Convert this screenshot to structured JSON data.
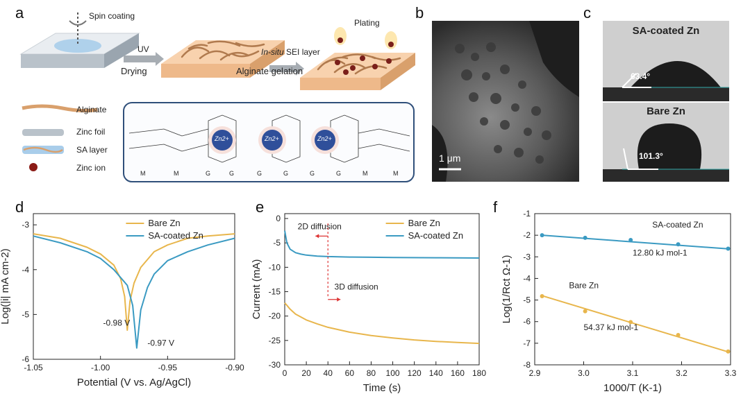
{
  "panel_letters": {
    "a": "a",
    "b": "b",
    "c": "c",
    "d": "d",
    "e": "e",
    "f": "f"
  },
  "schematic": {
    "spin_coating": "Spin coating",
    "uv": "UV",
    "drying": "Drying",
    "in_situ": "In-situ",
    "sei_layer": "SEI layer",
    "alginate_gelation": "Alginate gelation",
    "plating": "Plating",
    "legend": [
      {
        "label": "Alginate",
        "icon": "alginate-strand-icon"
      },
      {
        "label": "Zinc foil",
        "icon": "zinc-foil-icon"
      },
      {
        "label": "SA layer",
        "icon": "sa-layer-icon"
      },
      {
        "label": "Zinc ion",
        "icon": "zinc-ion-icon"
      }
    ],
    "zn_ions": [
      "Zn2+",
      "Zn2+",
      "Zn2+"
    ],
    "residues": [
      "M",
      "M",
      "G",
      "G",
      "G",
      "G",
      "G",
      "G",
      "M",
      "M"
    ]
  },
  "sem": {
    "scale_bar": "1 μm"
  },
  "contact": {
    "sa_title": "SA-coated Zn",
    "sa_angle": "63.4°",
    "bare_title": "Bare Zn",
    "bare_angle": "101.3°"
  },
  "chart_data": [
    {
      "panel": "d",
      "type": "line",
      "xlabel": "Potential (V vs. Ag/AgCl)",
      "ylabel": "Log(|i| mA cm-2)",
      "xlim": [
        -1.05,
        -0.9
      ],
      "ylim": [
        -6,
        -2.75
      ],
      "xticks": [
        -1.05,
        -1.0,
        -0.95,
        -0.9
      ],
      "xtick_labels": [
        "-1.05",
        "-1.00",
        "-0.95",
        "-0.90"
      ],
      "yticks": [
        -6,
        -5,
        -4,
        -3
      ],
      "ytick_labels": [
        "-6",
        "-5",
        "-4",
        "-3"
      ],
      "legend_position": "top-right",
      "series": [
        {
          "name": "Bare Zn",
          "color": "#E8B64C",
          "x": [
            -1.05,
            -1.03,
            -1.01,
            -1.0,
            -0.99,
            -0.985,
            -0.982,
            -0.98,
            -0.978,
            -0.975,
            -0.97,
            -0.96,
            -0.95,
            -0.935,
            -0.92,
            -0.9
          ],
          "y": [
            -3.2,
            -3.3,
            -3.5,
            -3.65,
            -3.9,
            -4.2,
            -4.6,
            -5.35,
            -4.7,
            -4.3,
            -3.95,
            -3.6,
            -3.45,
            -3.3,
            -3.25,
            -3.2
          ]
        },
        {
          "name": "SA-coated Zn",
          "color": "#3A9AC2",
          "x": [
            -1.05,
            -1.03,
            -1.01,
            -1.0,
            -0.99,
            -0.98,
            -0.976,
            -0.973,
            -0.97,
            -0.965,
            -0.96,
            -0.95,
            -0.935,
            -0.92,
            -0.9
          ],
          "y": [
            -3.25,
            -3.4,
            -3.6,
            -3.75,
            -4.0,
            -4.35,
            -4.8,
            -5.75,
            -4.9,
            -4.4,
            -4.1,
            -3.8,
            -3.6,
            -3.45,
            -3.3
          ]
        }
      ],
      "annotations": [
        {
          "text": "-0.98 V",
          "x": -0.998,
          "y": -5.25
        },
        {
          "text": "-0.97 V",
          "x": -0.965,
          "y": -5.7
        }
      ]
    },
    {
      "panel": "e",
      "type": "line",
      "xlabel": "Time (s)",
      "ylabel": "Current (mA)",
      "xlim": [
        0,
        180
      ],
      "ylim": [
        -30,
        1
      ],
      "xticks": [
        0,
        20,
        40,
        60,
        80,
        100,
        120,
        140,
        160,
        180
      ],
      "yticks": [
        0,
        -5,
        -10,
        -15,
        -20,
        -25,
        -30
      ],
      "legend_position": "top-right",
      "series": [
        {
          "name": "Bare Zn",
          "color": "#E8B64C",
          "x": [
            0,
            2,
            5,
            10,
            20,
            30,
            40,
            60,
            80,
            100,
            120,
            140,
            160,
            180
          ],
          "y": [
            -17.3,
            -17.8,
            -18.6,
            -19.6,
            -20.8,
            -21.6,
            -22.3,
            -23.3,
            -24.0,
            -24.5,
            -24.9,
            -25.2,
            -25.4,
            -25.6
          ]
        },
        {
          "name": "SA-coated Zn",
          "color": "#3A9AC2",
          "x": [
            0,
            2,
            5,
            10,
            15,
            20,
            30,
            40,
            60,
            80,
            100,
            140,
            180
          ],
          "y": [
            -2.5,
            -5.0,
            -6.3,
            -7.0,
            -7.3,
            -7.5,
            -7.7,
            -7.8,
            -7.9,
            -7.95,
            -8.0,
            -8.05,
            -8.1
          ]
        }
      ],
      "annotations": [
        {
          "text": "2D diffusion",
          "x": 12,
          "y": -2.2
        },
        {
          "text": "3D diffusion",
          "x": 46,
          "y": -14.6
        }
      ],
      "marker_x": 40
    },
    {
      "panel": "f",
      "type": "scatter",
      "xlabel": "1000/T (K-1)",
      "ylabel": "Log(1/Rct Ω-1)",
      "xlim": [
        2.9,
        3.3
      ],
      "ylim": [
        -8,
        -1
      ],
      "xticks": [
        2.9,
        3.0,
        3.1,
        3.2,
        3.3
      ],
      "xtick_labels": [
        "2.9",
        "3.0",
        "3.1",
        "3.2",
        "3.3"
      ],
      "yticks": [
        -1,
        -2,
        -3,
        -4,
        -5,
        -6,
        -7,
        -8
      ],
      "series": [
        {
          "name": "SA-coated Zn",
          "color": "#3A9AC2",
          "x": [
            2.915,
            3.003,
            3.096,
            3.193,
            3.295
          ],
          "y": [
            -2.0,
            -2.12,
            -2.22,
            -2.42,
            -2.62
          ],
          "fit": [
            [
              2.915,
              -2.0
            ],
            [
              3.295,
              -2.63
            ]
          ]
        },
        {
          "name": "Bare Zn",
          "color": "#E8B64C",
          "x": [
            2.915,
            3.003,
            3.096,
            3.193,
            3.295
          ],
          "y": [
            -4.82,
            -5.52,
            -6.02,
            -6.62,
            -7.38
          ],
          "fit": [
            [
              2.915,
              -4.8
            ],
            [
              3.295,
              -7.4
            ]
          ]
        }
      ],
      "annotations": [
        {
          "text": "SA-coated Zn",
          "x": 3.14,
          "y": -1.65
        },
        {
          "text": "12.80 kJ mol-1",
          "x": 3.1,
          "y": -2.95
        },
        {
          "text": "Bare Zn",
          "x": 2.97,
          "y": -4.45
        },
        {
          "text": "54.37 kJ mol-1",
          "x": 3.0,
          "y": -6.4
        }
      ]
    }
  ]
}
